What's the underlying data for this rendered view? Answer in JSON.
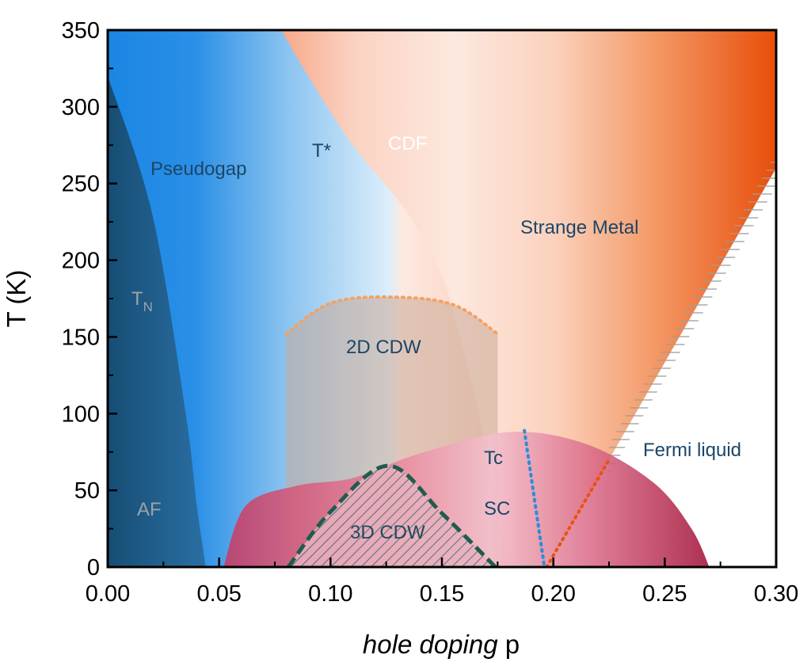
{
  "chart_data": {
    "type": "area",
    "xlabel": {
      "italic": "hole doping",
      "suffix": " p"
    },
    "ylabel": "T (K)",
    "xlim": [
      0.0,
      0.3
    ],
    "ylim": [
      0,
      350
    ],
    "xticks": [
      "0.00",
      "0.05",
      "0.10",
      "0.15",
      "0.20",
      "0.25",
      "0.30"
    ],
    "yticks": [
      "0",
      "50",
      "100",
      "150",
      "200",
      "250",
      "300",
      "350"
    ],
    "grid": false,
    "colors": {
      "af": "#1f5f8f",
      "pseudogap": "#1e88e5",
      "pseudogap_light": "#dcedf8",
      "cdf_light": "#fde6de",
      "strange_metal": "#e9530e",
      "sc_light": "#f3c0ce",
      "sc_dark": "#a3143a",
      "cdw2d": "#f4a261",
      "cdw3d": "#1f5c4f",
      "tc_line": "#2e8bd8",
      "fl_line": "#e9530e",
      "label_dark": "#1b4668",
      "label_grey": "#9aa3a8",
      "label_white": "#ffffff"
    },
    "regions": [
      {
        "name": "AF",
        "label": "AF",
        "boundary": [
          [
            0.0,
            320
          ],
          [
            0.02,
            230
          ],
          [
            0.035,
            100
          ],
          [
            0.04,
            40
          ],
          [
            0.044,
            0
          ]
        ]
      },
      {
        "name": "T_N",
        "label": "T",
        "subscript": "N"
      },
      {
        "name": "Pseudogap",
        "label": "Pseudogap"
      },
      {
        "name": "T*",
        "label": "T*",
        "boundary": [
          [
            0.078,
            350
          ],
          [
            0.09,
            320
          ],
          [
            0.11,
            275
          ],
          [
            0.135,
            230
          ],
          [
            0.15,
            190
          ],
          [
            0.158,
            150
          ],
          [
            0.165,
            110
          ],
          [
            0.172,
            60
          ],
          [
            0.18,
            0
          ]
        ]
      },
      {
        "name": "CDF",
        "label": "CDF"
      },
      {
        "name": "Strange Metal",
        "label": "Strange Metal"
      },
      {
        "name": "Fermi liquid",
        "label": "Fermi liquid",
        "boundary": [
          [
            0.197,
            0
          ],
          [
            0.225,
            70
          ],
          [
            0.3,
            260
          ]
        ]
      },
      {
        "name": "2D CDW",
        "label": "2D CDW",
        "x": [
          0.08,
          0.175
        ],
        "peak": [
          0.127,
          176
        ],
        "edge_T": 152
      },
      {
        "name": "3D CDW",
        "label": "3D CDW",
        "x": [
          0.081,
          0.174
        ],
        "peak": [
          0.126,
          66
        ]
      },
      {
        "name": "SC",
        "label": "SC",
        "x": [
          0.052,
          0.27
        ],
        "peak": [
          0.18,
          88
        ]
      },
      {
        "name": "Tc",
        "label": "Tc",
        "line": [
          [
            0.187,
            89
          ],
          [
            0.196,
            0
          ]
        ]
      }
    ]
  }
}
